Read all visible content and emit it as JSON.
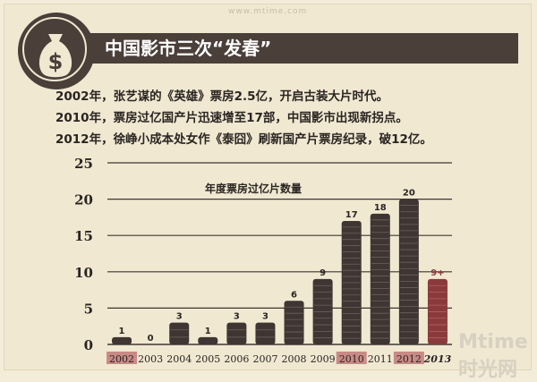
{
  "header": {
    "watermark": "www.mtime.com",
    "title": "中国影市三次“发春”",
    "icon": "money-bag-icon"
  },
  "notes": [
    "2002年，张艺谋的《英雄》票房2.5亿，开启古装大片时代。",
    "2010年，票房过亿国产片迅速增至17部，中国影市出现新拐点。",
    "2012年，徐峥小成本处女作《泰囧》刷新国产片票房纪录，破12亿。"
  ],
  "chart_data": {
    "type": "bar",
    "title": "年度票房过亿片数量",
    "categories": [
      "2002",
      "2003",
      "2004",
      "2005",
      "2006",
      "2007",
      "2008",
      "2009",
      "2010",
      "2011",
      "2012",
      "2013"
    ],
    "values": [
      1,
      0,
      3,
      1,
      3,
      3,
      6,
      9,
      17,
      18,
      20,
      9
    ],
    "data_labels": [
      "1",
      "0",
      "3",
      "1",
      "3",
      "3",
      "6",
      "9",
      "17",
      "18",
      "20",
      "9+"
    ],
    "highlighted_categories": [
      "2002",
      "2010",
      "2012"
    ],
    "ylim": [
      0,
      25
    ],
    "yticks": [
      0,
      5,
      10,
      15,
      20,
      25
    ],
    "grid": true,
    "xlabel": "",
    "ylabel": ""
  },
  "colors": {
    "bar": "#3f3532",
    "bar_projected": "#8b3a3c",
    "highlight_label_bg": "#c98a86",
    "grid": "#3f3532",
    "title_bar": "#4a3f39"
  },
  "footer": {
    "watermark": "Mtime 时光网"
  }
}
